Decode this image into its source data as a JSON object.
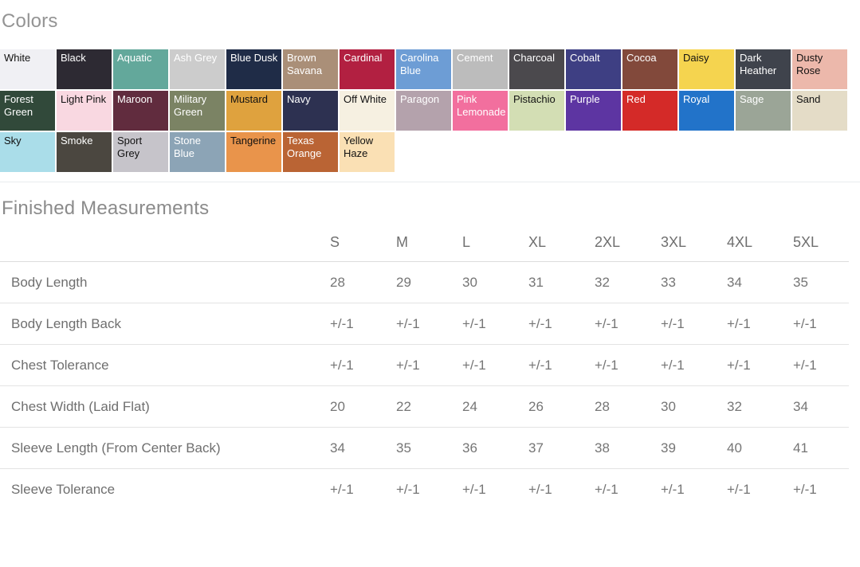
{
  "colors_section": {
    "title": "Colors",
    "swatches": [
      {
        "name": "White",
        "bg": "#f0f0f4",
        "fg": "#111111"
      },
      {
        "name": "Black",
        "bg": "#2d2a33",
        "fg": "#ffffff"
      },
      {
        "name": "Aquatic",
        "bg": "#63a89b",
        "fg": "#ffffff"
      },
      {
        "name": "Ash Grey",
        "bg": "#cccccc",
        "fg": "#ffffff"
      },
      {
        "name": "Blue Dusk",
        "bg": "#1f2c47",
        "fg": "#ffffff"
      },
      {
        "name": "Brown Savana",
        "bg": "#aa8f78",
        "fg": "#ffffff"
      },
      {
        "name": "Cardinal",
        "bg": "#b22041",
        "fg": "#ffffff"
      },
      {
        "name": "Carolina Blue",
        "bg": "#6d9dd5",
        "fg": "#ffffff"
      },
      {
        "name": "Cement",
        "bg": "#bcbcbc",
        "fg": "#ffffff"
      },
      {
        "name": "Charcoal",
        "bg": "#4b494d",
        "fg": "#ffffff"
      },
      {
        "name": "Cobalt",
        "bg": "#3e3f83",
        "fg": "#ffffff"
      },
      {
        "name": "Cocoa",
        "bg": "#82493b",
        "fg": "#ffffff"
      },
      {
        "name": "Daisy",
        "bg": "#f5d44f",
        "fg": "#111111"
      },
      {
        "name": "Dark Heather",
        "bg": "#3f434c",
        "fg": "#ffffff"
      },
      {
        "name": "Dusty Rose",
        "bg": "#ecb8ab",
        "fg": "#111111"
      },
      {
        "name": "Forest Green",
        "bg": "#31493a",
        "fg": "#ffffff"
      },
      {
        "name": "Light Pink",
        "bg": "#f9d8e1",
        "fg": "#111111"
      },
      {
        "name": "Maroon",
        "bg": "#612c3e",
        "fg": "#ffffff"
      },
      {
        "name": "Military Green",
        "bg": "#7b8364",
        "fg": "#ffffff"
      },
      {
        "name": "Mustard",
        "bg": "#dfa23e",
        "fg": "#111111"
      },
      {
        "name": "Navy",
        "bg": "#2d3151",
        "fg": "#ffffff"
      },
      {
        "name": "Off White",
        "bg": "#f6f0e1",
        "fg": "#111111"
      },
      {
        "name": "Paragon",
        "bg": "#b4a2ac",
        "fg": "#ffffff"
      },
      {
        "name": "Pink Lemonade",
        "bg": "#f26f9e",
        "fg": "#ffffff"
      },
      {
        "name": "Pistachio",
        "bg": "#d3deb4",
        "fg": "#111111"
      },
      {
        "name": "Purple",
        "bg": "#5d35a2",
        "fg": "#ffffff"
      },
      {
        "name": "Red",
        "bg": "#d42a28",
        "fg": "#ffffff"
      },
      {
        "name": "Royal",
        "bg": "#2273c9",
        "fg": "#ffffff"
      },
      {
        "name": "Sage",
        "bg": "#9ba597",
        "fg": "#ffffff"
      },
      {
        "name": "Sand",
        "bg": "#e4dcc7",
        "fg": "#111111"
      },
      {
        "name": "Sky",
        "bg": "#aadde9",
        "fg": "#111111"
      },
      {
        "name": "Smoke",
        "bg": "#4b4740",
        "fg": "#ffffff"
      },
      {
        "name": "Sport Grey",
        "bg": "#c6c4ca",
        "fg": "#111111"
      },
      {
        "name": "Stone Blue",
        "bg": "#8ca4b6",
        "fg": "#ffffff"
      },
      {
        "name": "Tangerine",
        "bg": "#e9944b",
        "fg": "#111111"
      },
      {
        "name": "Texas Orange",
        "bg": "#ba6434",
        "fg": "#ffffff"
      },
      {
        "name": "Yellow Haze",
        "bg": "#fae0b4",
        "fg": "#111111"
      }
    ]
  },
  "measurements_section": {
    "title": "Finished Measurements",
    "columns": [
      "S",
      "M",
      "L",
      "XL",
      "2XL",
      "3XL",
      "4XL",
      "5XL"
    ],
    "rows": [
      {
        "label": "Body Length",
        "values": [
          "28",
          "29",
          "30",
          "31",
          "32",
          "33",
          "34",
          "35"
        ]
      },
      {
        "label": "Body Length Back",
        "values": [
          "+/-1",
          "+/-1",
          "+/-1",
          "+/-1",
          "+/-1",
          "+/-1",
          "+/-1",
          "+/-1"
        ]
      },
      {
        "label": "Chest Tolerance",
        "values": [
          "+/-1",
          "+/-1",
          "+/-1",
          "+/-1",
          "+/-1",
          "+/-1",
          "+/-1",
          "+/-1"
        ]
      },
      {
        "label": "Chest Width (Laid Flat)",
        "values": [
          "20",
          "22",
          "24",
          "26",
          "28",
          "30",
          "32",
          "34"
        ]
      },
      {
        "label": "Sleeve Length (From Center Back)",
        "values": [
          "34",
          "35",
          "36",
          "37",
          "38",
          "39",
          "40",
          "41"
        ]
      },
      {
        "label": "Sleeve Tolerance",
        "values": [
          "+/-1",
          "+/-1",
          "+/-1",
          "+/-1",
          "+/-1",
          "+/-1",
          "+/-1",
          "+/-1"
        ]
      }
    ]
  }
}
